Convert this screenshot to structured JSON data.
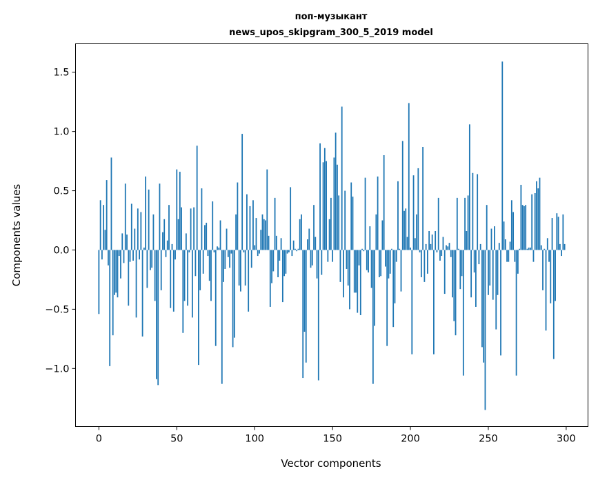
{
  "chart_data": {
    "type": "bar",
    "title": "поп-музыкант",
    "subtitle": "news_upos_skipgram_300_5_2019 model",
    "xlabel": "Vector components",
    "ylabel": "Components values",
    "xlim": [
      -15,
      314
    ],
    "ylim": [
      -1.49,
      1.74
    ],
    "xticks": [
      0,
      50,
      100,
      150,
      200,
      250,
      300
    ],
    "xtick_labels": [
      "0",
      "50",
      "100",
      "150",
      "200",
      "250",
      "300"
    ],
    "yticks": [
      -1.0,
      -0.5,
      0.0,
      0.5,
      1.0,
      1.5
    ],
    "ytick_labels": [
      "−1.0",
      "−0.5",
      "0.0",
      "0.5",
      "1.0",
      "1.5"
    ],
    "grid": false,
    "color": "#1f77b4",
    "values": [
      -0.54,
      0.42,
      -0.08,
      0.38,
      0.17,
      0.59,
      -0.13,
      -0.98,
      0.78,
      -0.72,
      -0.38,
      -0.36,
      -0.4,
      -0.05,
      -0.24,
      0.14,
      -0.11,
      0.56,
      0.13,
      -0.47,
      -0.1,
      0.39,
      -0.09,
      0.18,
      -0.57,
      0.35,
      -0.08,
      0.32,
      -0.73,
      0.02,
      0.62,
      -0.32,
      0.51,
      -0.17,
      -0.15,
      0.3,
      -0.43,
      -1.09,
      -1.14,
      0.56,
      -0.34,
      0.15,
      0.26,
      -0.06,
      0.08,
      0.38,
      -0.49,
      0.05,
      -0.52,
      -0.08,
      0.68,
      0.26,
      0.66,
      0.36,
      -0.7,
      -0.43,
      0.14,
      -0.47,
      -0.02,
      0.35,
      -0.57,
      0.36,
      -0.22,
      0.88,
      -0.97,
      -0.34,
      0.52,
      -0.2,
      0.21,
      0.23,
      -0.05,
      -0.26,
      -0.43,
      0.41,
      -0.02,
      -0.81,
      0.03,
      0.02,
      0.25,
      -1.13,
      -0.27,
      -0.16,
      0.18,
      -0.06,
      -0.15,
      -0.03,
      -0.82,
      -0.74,
      0.3,
      0.57,
      -0.3,
      -0.35,
      0.98,
      -0.02,
      -0.3,
      0.47,
      -0.52,
      0.37,
      -0.15,
      0.42,
      0.04,
      0.27,
      -0.05,
      -0.03,
      0.17,
      0.3,
      0.26,
      0.25,
      0.68,
      0.12,
      -0.48,
      -0.28,
      -0.18,
      0.44,
      0.12,
      -0.23,
      -0.09,
      0.1,
      -0.44,
      -0.22,
      -0.2,
      -0.03,
      -0.02,
      0.53,
      -0.05,
      0.08,
      0.01,
      -0.01,
      0.01,
      0.26,
      0.3,
      -1.08,
      -0.69,
      -0.95,
      0.09,
      0.18,
      -0.15,
      -0.13,
      0.38,
      0.11,
      -0.24,
      -1.1,
      0.9,
      -0.21,
      0.74,
      0.86,
      0.75,
      -0.1,
      0.26,
      0.44,
      -0.1,
      0.78,
      0.99,
      0.72,
      0.46,
      -0.27,
      1.21,
      -0.4,
      0.5,
      -0.16,
      -0.3,
      -0.5,
      0.57,
      0.45,
      -0.36,
      -0.36,
      -0.53,
      -0.13,
      -0.55,
      0.01,
      -0.01,
      0.61,
      -0.17,
      -0.19,
      0.2,
      -0.32,
      -1.13,
      -0.64,
      0.3,
      0.62,
      -0.23,
      -0.22,
      0.25,
      0.8,
      -0.14,
      -0.81,
      -0.24,
      -0.2,
      0.01,
      -0.65,
      -0.45,
      -0.1,
      0.58,
      0.01,
      -0.35,
      0.92,
      0.33,
      0.35,
      0.11,
      1.24,
      0.02,
      -0.88,
      0.63,
      0.1,
      0.3,
      0.69,
      -0.02,
      -0.23,
      0.87,
      -0.27,
      0.05,
      -0.2,
      0.16,
      0.05,
      0.13,
      -0.88,
      0.16,
      -0.02,
      0.44,
      -0.09,
      -0.05,
      0.11,
      -0.37,
      0.04,
      0.03,
      0.06,
      -0.06,
      -0.4,
      -0.6,
      -0.72,
      0.44,
      0.01,
      -0.33,
      -0.22,
      -1.06,
      0.44,
      0.16,
      0.46,
      1.06,
      -0.4,
      0.65,
      -0.19,
      -0.48,
      0.64,
      -0.12,
      0.05,
      -0.82,
      -0.95,
      -1.35,
      0.38,
      -0.38,
      -0.3,
      0.18,
      -0.42,
      0.2,
      -0.67,
      -0.38,
      0.06,
      -0.89,
      1.59,
      0.24,
      0.09,
      -0.1,
      -0.1,
      0.07,
      0.42,
      0.32,
      -0.1,
      -1.06,
      -0.2,
      0.01,
      0.55,
      0.38,
      0.37,
      0.38,
      0.01,
      0.02,
      0.02,
      0.47,
      -0.1,
      0.48,
      0.58,
      0.52,
      0.61,
      0.04,
      -0.34,
      0.01,
      -0.68,
      0.1,
      -0.1,
      -0.45,
      0.27,
      -0.92,
      -0.43,
      0.31,
      0.28,
      0.05,
      -0.05,
      0.3,
      0.05
    ]
  }
}
